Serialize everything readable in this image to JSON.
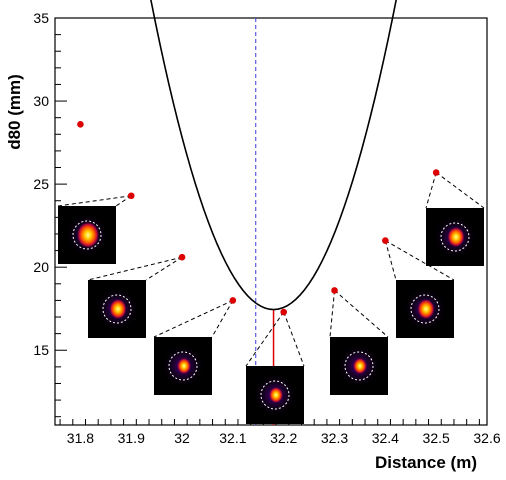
{
  "chart_data": {
    "type": "scatter",
    "title": "",
    "xlabel": "Distance (m)",
    "ylabel": "d80 (mm)",
    "xlim": [
      31.75,
      32.6
    ],
    "ylim": [
      10.5,
      35
    ],
    "x_ticks": [
      "31.8",
      "31.9",
      "32",
      "32.1",
      "32.2",
      "32.3",
      "32.4",
      "32.5",
      "32.6"
    ],
    "y_ticks": [
      "15",
      "20",
      "25",
      "30",
      "35"
    ],
    "grid": false,
    "legend": "none",
    "points": [
      {
        "x": 31.8,
        "y": 28.6
      },
      {
        "x": 31.9,
        "y": 24.3
      },
      {
        "x": 32.0,
        "y": 20.6
      },
      {
        "x": 32.1,
        "y": 18.0
      },
      {
        "x": 32.2,
        "y": 17.3
      },
      {
        "x": 32.3,
        "y": 18.6
      },
      {
        "x": 32.4,
        "y": 21.6
      },
      {
        "x": 32.5,
        "y": 25.7
      }
    ],
    "fit_curve": {
      "type": "parabola",
      "x_range": [
        31.81,
        32.5
      ],
      "vertex_x": 32.18,
      "vertex_y": 17.45,
      "a": 320
    },
    "vertical_reference_line": {
      "x": 32.145,
      "style": "dashed",
      "color": "#3b3bdc"
    },
    "minimum_marker": {
      "x": 32.18,
      "y_from": 10.5,
      "y_to": 17.45,
      "color": "#dd0000"
    },
    "point_color": "#dd0000",
    "curve_color": "#000000",
    "inset_images": [
      {
        "x": 31.9,
        "spot": "large-irregular"
      },
      {
        "x": 32.0,
        "spot": "medium"
      },
      {
        "x": 32.1,
        "spot": "small"
      },
      {
        "x": 32.2,
        "spot": "small"
      },
      {
        "x": 32.3,
        "spot": "small"
      },
      {
        "x": 32.4,
        "spot": "medium"
      },
      {
        "x": 32.5,
        "spot": "medium"
      }
    ]
  }
}
